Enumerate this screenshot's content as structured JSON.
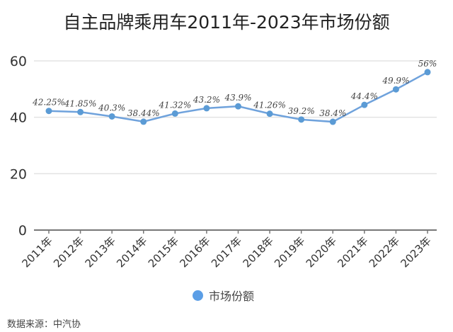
{
  "title": "自主品牌乘用车2011年-2023年市场份额",
  "source": "数据来源：中汽协",
  "legend": {
    "label": "市场份额",
    "color": "#5b9ee6"
  },
  "chart_data": {
    "type": "line",
    "title": "自主品牌乘用车2011年-2023年市场份额",
    "xlabel": "",
    "ylabel": "",
    "ylim": [
      0,
      60
    ],
    "yticks": [
      0,
      20,
      40,
      60
    ],
    "grid": true,
    "legend_position": "bottom",
    "categories": [
      "2011年",
      "2012年",
      "2013年",
      "2014年",
      "2015年",
      "2016年",
      "2017年",
      "2018年",
      "2019年",
      "2020年",
      "2021年",
      "2022年",
      "2023年"
    ],
    "series": [
      {
        "name": "市场份额",
        "values": [
          42.25,
          41.85,
          40.3,
          38.44,
          41.32,
          43.2,
          43.9,
          41.26,
          39.2,
          38.4,
          44.4,
          49.9,
          56
        ],
        "labels": [
          "42.25%",
          "41.85%",
          "40.3%",
          "38.44%",
          "41.32%",
          "43.2%",
          "43.9%",
          "41.26%",
          "39.2%",
          "38.4%",
          "44.4%",
          "49.9%",
          "56%"
        ],
        "color": "#6fa2dc"
      }
    ],
    "annotation": "数据来源：中汽协"
  }
}
